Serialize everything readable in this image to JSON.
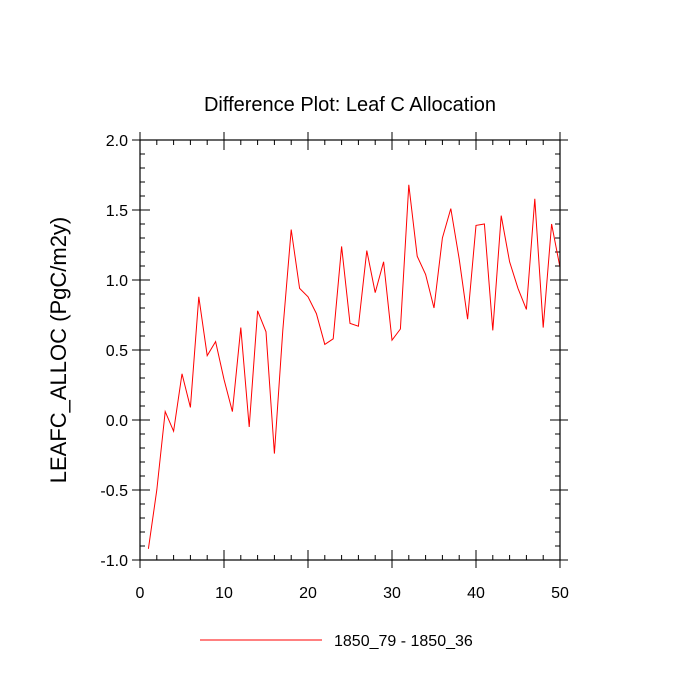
{
  "chart_data": {
    "type": "line",
    "title": "Difference Plot: Leaf C Allocation",
    "xlabel": "",
    "ylabel": "LEAFC_ALLOC  (PgC/m2y)",
    "xlim": [
      0,
      50
    ],
    "ylim": [
      -1.0,
      2.0
    ],
    "x_ticks": [
      0,
      10,
      20,
      30,
      40,
      50
    ],
    "y_ticks": [
      -1.0,
      -0.5,
      0.0,
      0.5,
      1.0,
      1.5,
      2.0
    ],
    "x_tick_labels": [
      "0",
      "10",
      "20",
      "30",
      "40",
      "50"
    ],
    "y_tick_labels": [
      "-1.0",
      "-0.5",
      "0.0",
      "0.5",
      "1.0",
      "1.5",
      "2.0"
    ],
    "grid": false,
    "legend_position": "bottom",
    "series": [
      {
        "name": "1850_79 - 1850_36",
        "color": "#ff0000",
        "x": [
          1,
          2,
          3,
          4,
          5,
          6,
          7,
          8,
          9,
          10,
          11,
          12,
          13,
          14,
          15,
          16,
          17,
          18,
          19,
          20,
          21,
          22,
          23,
          24,
          25,
          26,
          27,
          28,
          29,
          30,
          31,
          32,
          33,
          34,
          35,
          36,
          37,
          38,
          39,
          40,
          41,
          42,
          43,
          44,
          45,
          46,
          47,
          48,
          49,
          50
        ],
        "values": [
          -0.92,
          -0.5,
          0.06,
          -0.08,
          0.33,
          0.09,
          0.88,
          0.46,
          0.56,
          0.29,
          0.06,
          0.66,
          -0.05,
          0.78,
          0.63,
          -0.24,
          0.64,
          1.36,
          0.94,
          0.88,
          0.76,
          0.54,
          0.58,
          1.24,
          0.69,
          0.67,
          1.21,
          0.91,
          1.13,
          0.57,
          0.65,
          1.68,
          1.17,
          1.04,
          0.8,
          1.3,
          1.51,
          1.15,
          0.72,
          1.39,
          1.4,
          0.64,
          1.46,
          1.13,
          0.94,
          0.79,
          1.58,
          0.66,
          1.4,
          1.09
        ]
      }
    ]
  }
}
